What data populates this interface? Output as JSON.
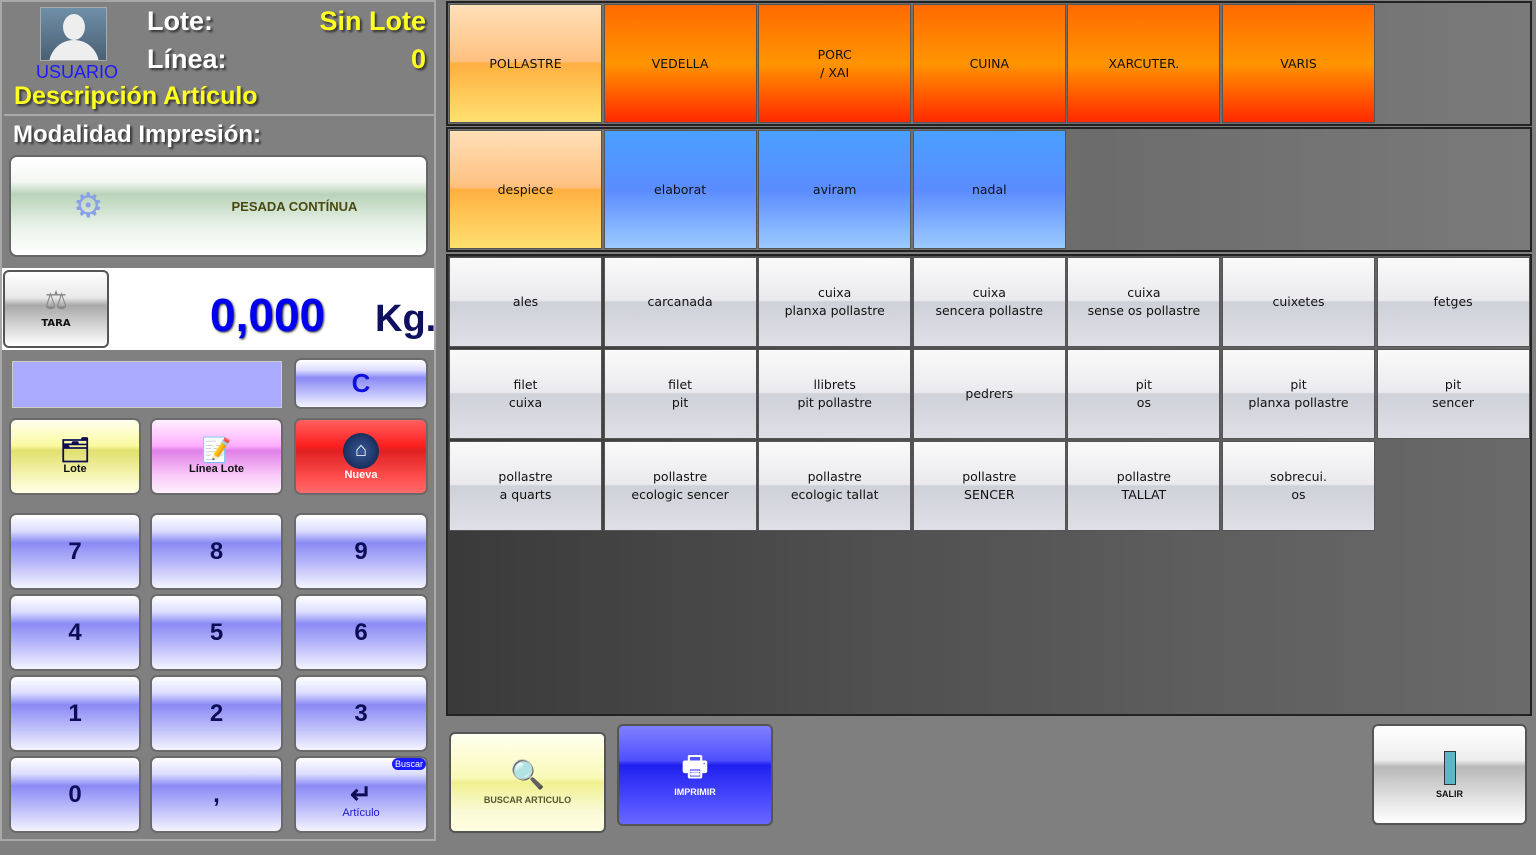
{
  "header": {
    "user_label": "USUARIO",
    "lote_label": "Lote:",
    "lote_value": "Sin Lote",
    "linea_label": "Línea:",
    "linea_value": "0",
    "article_description": "Descripción Artículo"
  },
  "print_mode": {
    "title": "Modalidad Impresión:",
    "button_label": "PESADA CONTÍNUA"
  },
  "weight": {
    "tara_label": "TARA",
    "value": "0,000",
    "unit": "Kg."
  },
  "keypad": {
    "input_value": "",
    "clear_label": "C",
    "lote_label": "Lote",
    "linea_lote_label": "Línea Lote",
    "nueva_label": "Nueva",
    "digits": [
      "7",
      "8",
      "9",
      "4",
      "5",
      "6",
      "1",
      "2",
      "3",
      "0",
      ","
    ],
    "enter_label": "Artículo",
    "enter_badge": "Buscar"
  },
  "families": [
    {
      "label": "POLLASTRE",
      "selected": true
    },
    {
      "label": "VEDELLA"
    },
    {
      "label": "PORC\n/ XAI"
    },
    {
      "label": "CUINA"
    },
    {
      "label": "XARCUTER."
    },
    {
      "label": "VARIS"
    }
  ],
  "subfamilies": [
    {
      "label": "despiece",
      "selected": true
    },
    {
      "label": "elaborat"
    },
    {
      "label": "aviram"
    },
    {
      "label": "nadal"
    }
  ],
  "products": [
    "ales",
    "carcanada",
    "cuixa\nplanxa pollastre",
    "cuixa\nsencera pollastre",
    "cuixa\nsense os pollastre",
    "cuixetes",
    "fetges",
    "filet\ncuixa",
    "filet\npit",
    "llibrets\npit pollastre",
    "pedrers",
    "pit\nos",
    "pit\nplanxa pollastre",
    "pit\nsencer",
    "pollastre\na quarts",
    "pollastre\necologic sencer",
    "pollastre\necologic tallat",
    "pollastre\nSENCER",
    "pollastre\nTALLAT",
    "sobrecui.\nos"
  ],
  "footer": {
    "buscar_label": "BUSCAR ARTICULO",
    "imprimir_label": "IMPRIMIR",
    "salir_label": "SALIR"
  },
  "colors": {
    "family": "#ff8000",
    "selected": "#ffc060",
    "subfamily": "#5a8cff",
    "weight_value": "#0000ee",
    "label_yellow": "#ffff20"
  }
}
